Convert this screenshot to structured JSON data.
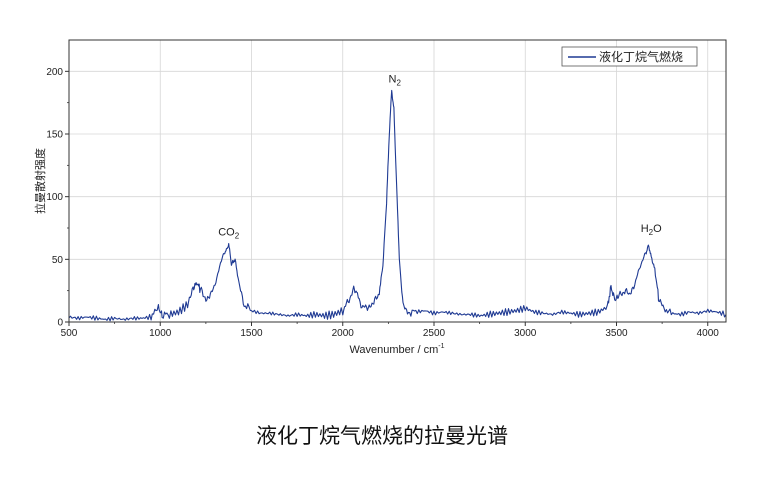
{
  "figure": {
    "caption": "液化丁烷气燃烧的拉曼光谱"
  },
  "chart_data": {
    "type": "line",
    "xlabel_main": "Wavenumber / cm",
    "xlabel_sup": "-1",
    "ylabel": "拉曼散射强度",
    "xlim": [
      500,
      4100
    ],
    "ylim": [
      0,
      225
    ],
    "x_ticks": [
      500,
      1000,
      1500,
      2000,
      2500,
      3000,
      3500,
      4000
    ],
    "y_ticks": [
      0,
      50,
      100,
      150,
      200
    ],
    "grid": true,
    "legend_position": "top-right",
    "line_color": "#1f3a93",
    "series": [
      {
        "name": "液化丁烷气燃烧",
        "points": [
          [
            500,
            4
          ],
          [
            550,
            3
          ],
          [
            600,
            4
          ],
          [
            650,
            3
          ],
          [
            700,
            2
          ],
          [
            750,
            3
          ],
          [
            800,
            2
          ],
          [
            850,
            3
          ],
          [
            900,
            3
          ],
          [
            950,
            4
          ],
          [
            990,
            12
          ],
          [
            1010,
            5
          ],
          [
            1050,
            6
          ],
          [
            1100,
            8
          ],
          [
            1150,
            14
          ],
          [
            1180,
            27
          ],
          [
            1200,
            31
          ],
          [
            1220,
            26
          ],
          [
            1250,
            18
          ],
          [
            1280,
            22
          ],
          [
            1310,
            35
          ],
          [
            1340,
            52
          ],
          [
            1360,
            57
          ],
          [
            1375,
            62
          ],
          [
            1390,
            46
          ],
          [
            1410,
            50
          ],
          [
            1430,
            32
          ],
          [
            1460,
            14
          ],
          [
            1500,
            9
          ],
          [
            1550,
            7
          ],
          [
            1600,
            7
          ],
          [
            1650,
            6
          ],
          [
            1700,
            5
          ],
          [
            1750,
            6
          ],
          [
            1800,
            5
          ],
          [
            1850,
            6
          ],
          [
            1900,
            5
          ],
          [
            1950,
            6
          ],
          [
            2000,
            9
          ],
          [
            2030,
            16
          ],
          [
            2060,
            27
          ],
          [
            2080,
            22
          ],
          [
            2110,
            11
          ],
          [
            2140,
            12
          ],
          [
            2170,
            15
          ],
          [
            2200,
            24
          ],
          [
            2220,
            45
          ],
          [
            2240,
            95
          ],
          [
            2255,
            150
          ],
          [
            2268,
            185
          ],
          [
            2280,
            170
          ],
          [
            2295,
            110
          ],
          [
            2310,
            50
          ],
          [
            2330,
            14
          ],
          [
            2360,
            8
          ],
          [
            2400,
            8
          ],
          [
            2450,
            9
          ],
          [
            2500,
            7
          ],
          [
            2550,
            8
          ],
          [
            2600,
            7
          ],
          [
            2650,
            6
          ],
          [
            2700,
            6
          ],
          [
            2750,
            5
          ],
          [
            2800,
            6
          ],
          [
            2850,
            7
          ],
          [
            2900,
            8
          ],
          [
            2950,
            9
          ],
          [
            3000,
            11
          ],
          [
            3050,
            8
          ],
          [
            3100,
            7
          ],
          [
            3150,
            6
          ],
          [
            3200,
            8
          ],
          [
            3250,
            7
          ],
          [
            3300,
            6
          ],
          [
            3350,
            7
          ],
          [
            3400,
            8
          ],
          [
            3450,
            12
          ],
          [
            3470,
            28
          ],
          [
            3490,
            18
          ],
          [
            3510,
            20
          ],
          [
            3540,
            25
          ],
          [
            3570,
            22
          ],
          [
            3600,
            30
          ],
          [
            3630,
            45
          ],
          [
            3660,
            55
          ],
          [
            3675,
            61
          ],
          [
            3690,
            52
          ],
          [
            3710,
            42
          ],
          [
            3730,
            20
          ],
          [
            3760,
            10
          ],
          [
            3800,
            7
          ],
          [
            3850,
            6
          ],
          [
            3900,
            8
          ],
          [
            3950,
            7
          ],
          [
            4000,
            9
          ],
          [
            4050,
            8
          ],
          [
            4100,
            6
          ]
        ]
      }
    ],
    "annotations": [
      {
        "main": "CO",
        "sub": "2",
        "x": 1375,
        "y": 69
      },
      {
        "main": "N",
        "sub": "2",
        "x": 2285,
        "y": 191
      },
      {
        "main": "H",
        "sub": "2",
        "tail": "O",
        "x": 3690,
        "y": 72
      }
    ]
  }
}
